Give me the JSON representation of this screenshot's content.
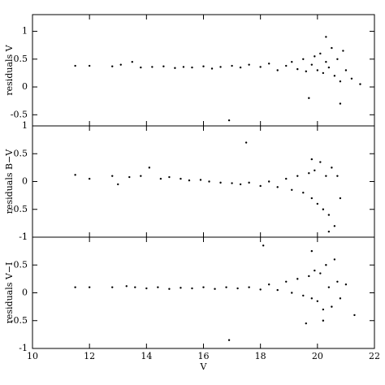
{
  "chart_data": [
    {
      "type": "scatter",
      "ylabel": "residuals V",
      "x": [
        11.5,
        12,
        12.8,
        13.1,
        13.5,
        13.8,
        14.2,
        14.6,
        15,
        15.3,
        15.6,
        16,
        16.3,
        16.6,
        17,
        17.3,
        17.6,
        18,
        18.3,
        18.6,
        18.9,
        19.1,
        19.3,
        19.5,
        19.6,
        19.8,
        19.9,
        20,
        20.1,
        20.2,
        20.3,
        20.4,
        20.5,
        20.6,
        20.7,
        20.8,
        20.9,
        21,
        21.2,
        21.5,
        19.7,
        20.3,
        20.8,
        16.9
      ],
      "values": [
        0.38,
        0.38,
        0.37,
        0.4,
        0.45,
        0.35,
        0.36,
        0.37,
        0.34,
        0.36,
        0.35,
        0.37,
        0.33,
        0.36,
        0.38,
        0.35,
        0.4,
        0.36,
        0.42,
        0.3,
        0.38,
        0.45,
        0.32,
        0.5,
        0.28,
        0.4,
        0.55,
        0.3,
        0.6,
        0.25,
        0.45,
        0.35,
        0.7,
        0.2,
        0.5,
        0.1,
        0.65,
        0.3,
        0.15,
        0.05,
        -0.2,
        0.9,
        -0.3,
        -0.6
      ],
      "color": "#000000",
      "xlim": [
        10,
        22
      ],
      "xticks": [
        10,
        12,
        14,
        16,
        18,
        20,
        22
      ],
      "ylim": [
        -0.7,
        1.3
      ],
      "yticks": [
        -0.5,
        0,
        0.5,
        1
      ]
    },
    {
      "type": "scatter",
      "ylabel": "residuals B−V",
      "x": [
        11.5,
        12,
        12.8,
        13,
        13.4,
        13.8,
        14.1,
        14.5,
        14.8,
        15.2,
        15.5,
        15.9,
        16.2,
        16.6,
        17,
        17.3,
        17.6,
        18,
        18.3,
        18.6,
        18.9,
        19.1,
        19.3,
        19.5,
        19.7,
        19.8,
        19.9,
        20,
        20.1,
        20.2,
        20.3,
        20.4,
        20.5,
        20.6,
        20.7,
        20.8,
        17.5,
        19.8,
        20.4
      ],
      "values": [
        0.12,
        0.05,
        0.1,
        -0.05,
        0.08,
        0.1,
        0.25,
        0.05,
        0.08,
        0.05,
        0.02,
        0.03,
        0,
        -0.02,
        -0.03,
        -0.05,
        -0.02,
        -0.08,
        0,
        -0.1,
        0.05,
        -0.15,
        0.1,
        -0.2,
        0.15,
        -0.3,
        0.2,
        -0.4,
        0.35,
        -0.5,
        0.1,
        -0.6,
        0.25,
        -0.8,
        0.1,
        -0.3,
        0.7,
        0.4,
        -0.9
      ],
      "color": "#000000",
      "xlim": [
        10,
        22
      ],
      "xticks": [
        10,
        12,
        14,
        16,
        18,
        20,
        22
      ],
      "ylim": [
        -1,
        1
      ],
      "yticks": [
        -1,
        -0.5,
        0,
        0.5,
        1
      ]
    },
    {
      "type": "scatter",
      "ylabel": "residuals V−I",
      "xlabel": "V",
      "x": [
        11.5,
        12,
        12.8,
        13.3,
        13.6,
        14,
        14.4,
        14.8,
        15.2,
        15.6,
        16,
        16.4,
        16.8,
        17.2,
        17.6,
        18,
        18.3,
        18.6,
        18.9,
        19.1,
        19.3,
        19.5,
        19.7,
        19.8,
        19.9,
        20,
        20.1,
        20.2,
        20.3,
        20.4,
        20.5,
        20.6,
        20.7,
        20.8,
        21,
        21.3,
        19.8,
        20.2,
        16.9,
        18.1,
        19.6
      ],
      "values": [
        0.1,
        0.1,
        0.1,
        0.12,
        0.1,
        0.08,
        0.1,
        0.07,
        0.09,
        0.08,
        0.1,
        0.07,
        0.1,
        0.08,
        0.1,
        0.06,
        0.15,
        0.05,
        0.2,
        0,
        0.25,
        -0.05,
        0.3,
        -0.1,
        0.4,
        -0.15,
        0.35,
        -0.3,
        0.5,
        0.1,
        -0.25,
        0.6,
        0.2,
        -0.1,
        0.15,
        -0.4,
        0.75,
        -0.5,
        -0.85,
        0.85,
        -0.55
      ],
      "color": "#000000",
      "xlim": [
        10,
        22
      ],
      "xticks": [
        10,
        12,
        14,
        16,
        18,
        20,
        22
      ],
      "ylim": [
        -1,
        1
      ],
      "yticks": [
        -1,
        -0.5,
        0,
        0.5,
        1
      ]
    }
  ]
}
